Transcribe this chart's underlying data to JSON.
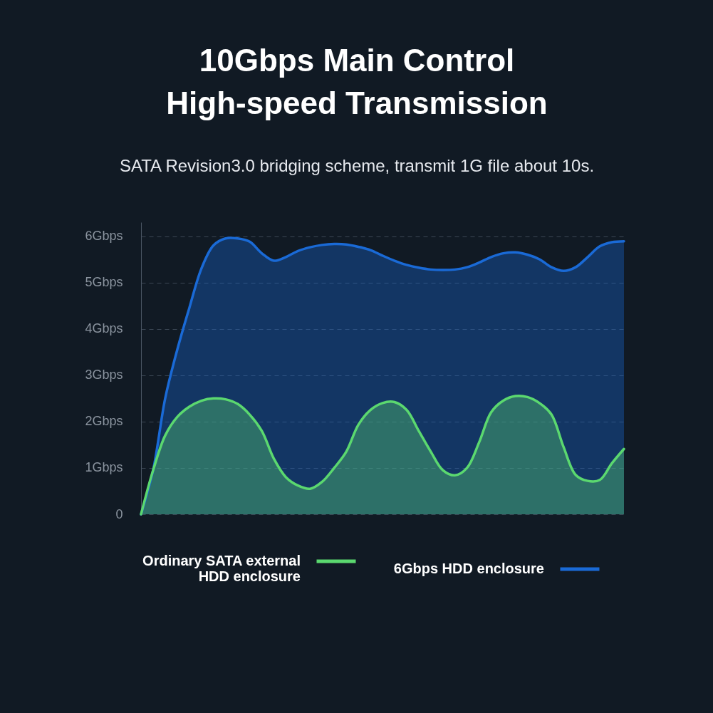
{
  "chart_data": {
    "type": "area",
    "title": "10Gbps Main Control High-speed Transmission",
    "subtitle": "SATA Revision3.0 bridging scheme, transmit 1G file about 10s.",
    "categories": [
      null,
      null,
      null,
      null,
      null,
      null,
      null,
      null,
      null,
      null,
      null,
      null,
      null,
      null,
      null,
      null,
      null,
      null,
      null,
      null,
      null,
      null,
      null,
      null,
      null,
      null,
      null,
      null,
      null,
      null,
      null,
      null,
      null,
      null,
      null,
      null,
      null,
      null,
      null,
      null,
      null
    ],
    "series": [
      {
        "name": "Ordinary SATA external HDD enclosure",
        "color": "#5bd86f",
        "values": [
          0,
          0.95,
          1.7,
          2.1,
          2.32,
          2.45,
          2.5,
          2.48,
          2.38,
          2.15,
          1.8,
          1.2,
          0.8,
          0.62,
          0.55,
          0.7,
          1.0,
          1.35,
          1.93,
          2.25,
          2.4,
          2.42,
          2.25,
          1.8,
          1.35,
          0.95,
          0.84,
          1.0,
          1.55,
          2.2,
          2.45,
          2.55,
          2.53,
          2.4,
          2.15,
          1.45,
          0.85,
          0.72,
          0.74,
          1.1,
          1.41
        ]
      },
      {
        "name": "6Gbps HDD enclosure",
        "color": "#1a6ad6",
        "values": [
          0,
          0.95,
          2.5,
          3.55,
          4.45,
          5.3,
          5.8,
          5.95,
          5.95,
          5.88,
          5.63,
          5.47,
          5.55,
          5.68,
          5.76,
          5.81,
          5.83,
          5.82,
          5.77,
          5.7,
          5.58,
          5.47,
          5.38,
          5.32,
          5.28,
          5.27,
          5.28,
          5.33,
          5.43,
          5.55,
          5.63,
          5.65,
          5.6,
          5.5,
          5.33,
          5.25,
          5.33,
          5.55,
          5.78,
          5.87,
          5.89
        ]
      }
    ],
    "ylim": [
      0,
      6.3
    ],
    "yticks": [
      0,
      {
        "value": 1,
        "label": "1Gbps"
      },
      {
        "value": 2,
        "label": "2Gbps"
      },
      {
        "value": 3,
        "label": "3Gbps"
      },
      {
        "value": 4,
        "label": "4Gbps"
      },
      {
        "value": 5,
        "label": "5Gbps"
      },
      {
        "value": 6,
        "label": "6Gbps"
      }
    ],
    "grid": "y",
    "legend": "bottom"
  }
}
